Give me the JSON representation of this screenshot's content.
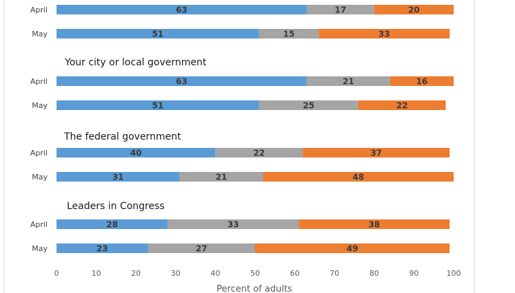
{
  "chart_data": {
    "type": "bar",
    "orientation": "horizontal",
    "stacked": true,
    "xlabel": "Percent of adults",
    "xlim": [
      0,
      100
    ],
    "xticks": [
      "0",
      "10",
      "20",
      "30",
      "40",
      "50",
      "60",
      "70",
      "80",
      "90",
      "100"
    ],
    "series_colors": [
      "#5b9bd5",
      "#a5a5a5",
      "#ed7d31"
    ],
    "groups": [
      {
        "title": "",
        "rows": [
          {
            "label": "April",
            "values": [
              63,
              17,
              20
            ]
          },
          {
            "label": "May",
            "values": [
              51,
              15,
              33
            ]
          }
        ]
      },
      {
        "title": "Your city or local government",
        "rows": [
          {
            "label": "April",
            "values": [
              63,
              21,
              16
            ]
          },
          {
            "label": "May",
            "values": [
              51,
              25,
              22
            ]
          }
        ]
      },
      {
        "title": "The federal government",
        "rows": [
          {
            "label": "April",
            "values": [
              40,
              22,
              37
            ]
          },
          {
            "label": "May",
            "values": [
              31,
              21,
              48
            ]
          }
        ]
      },
      {
        "title": "Leaders in Congress",
        "rows": [
          {
            "label": "April",
            "values": [
              28,
              33,
              38
            ]
          },
          {
            "label": "May",
            "values": [
              23,
              27,
              49
            ]
          }
        ]
      }
    ]
  }
}
